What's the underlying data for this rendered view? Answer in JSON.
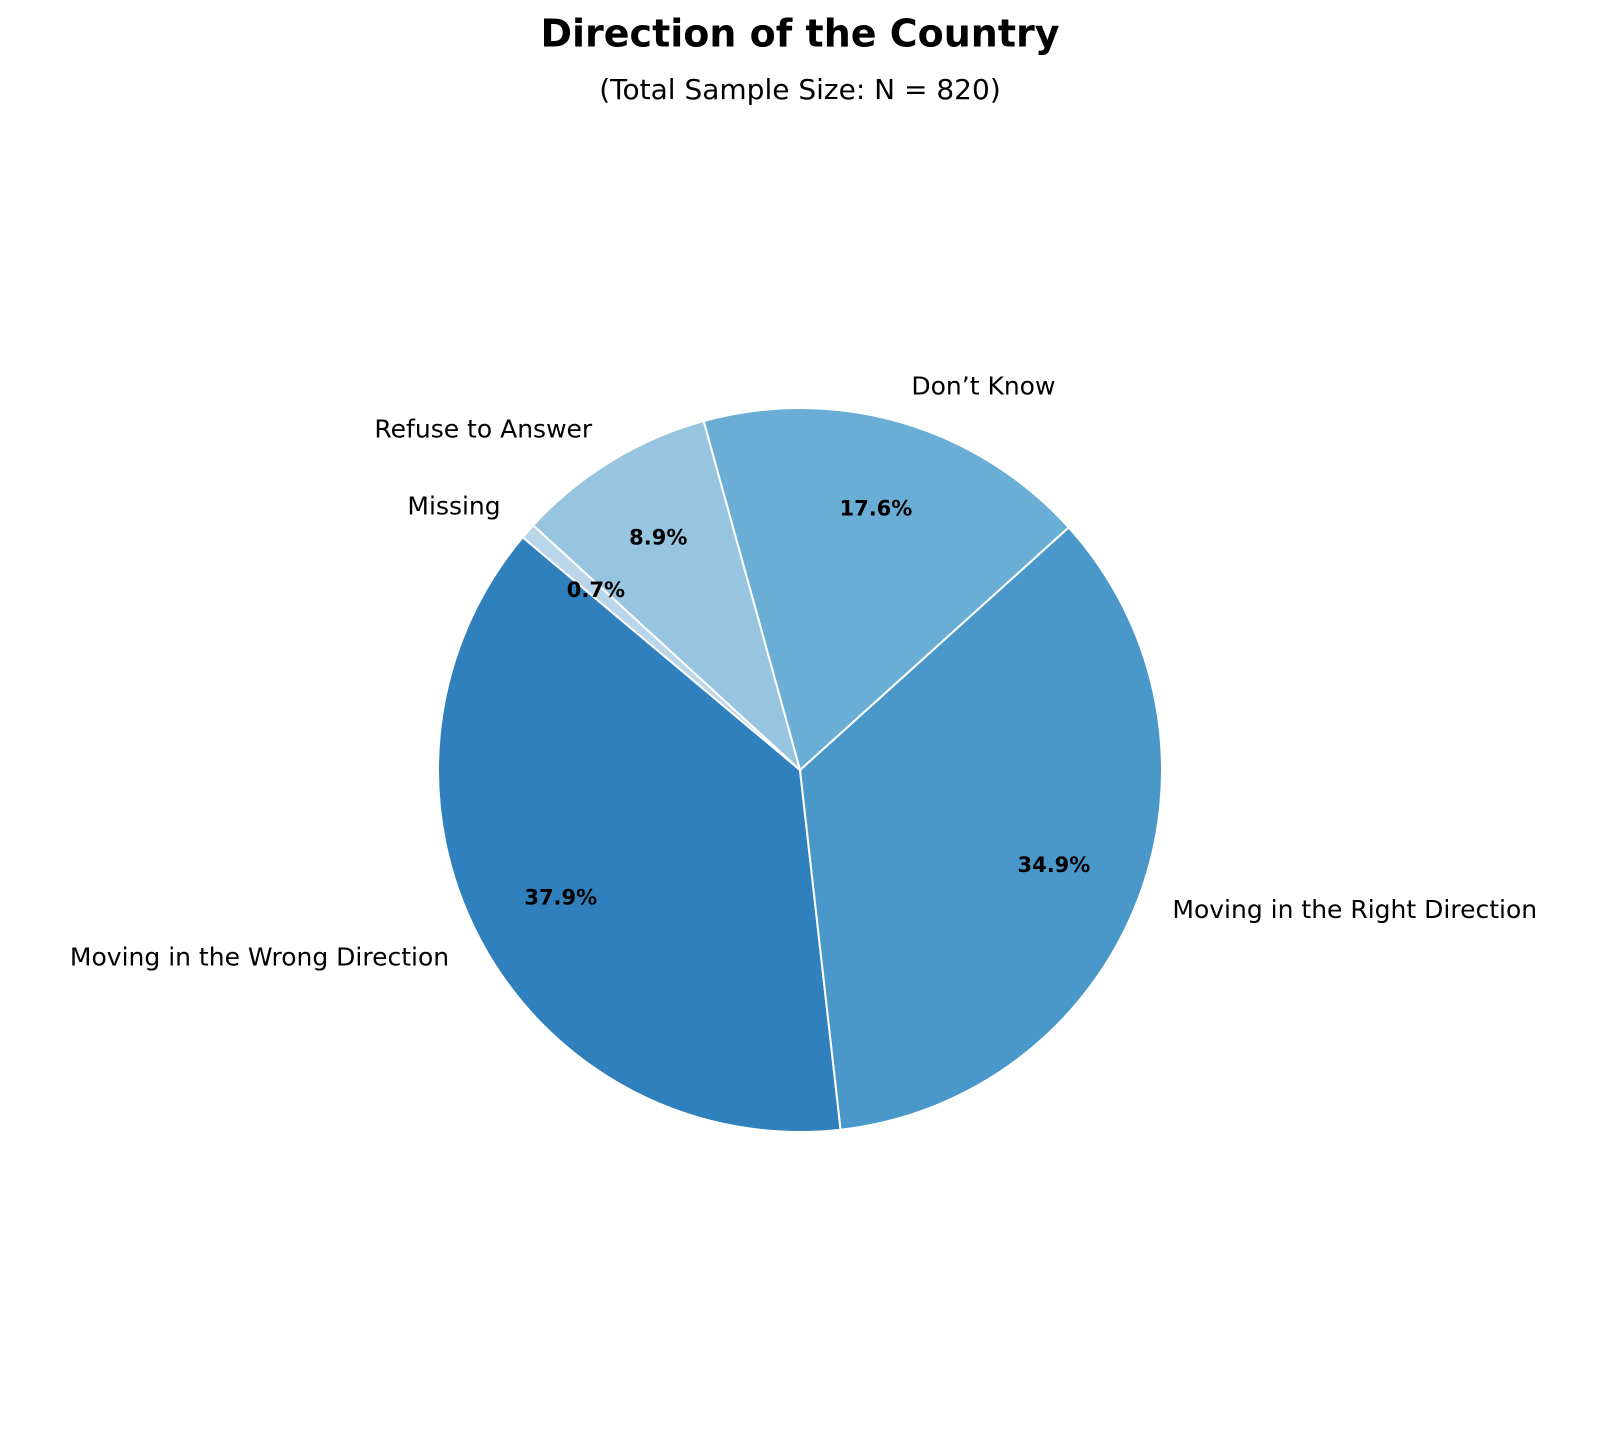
{
  "chart_data": {
    "type": "pie",
    "title": "Direction of the Country",
    "subtitle": "(Total Sample Size: N = 820)",
    "categories": [
      "Moving in the Wrong Direction",
      "Moving in the Right Direction",
      "Don’t Know",
      "Refuse to Answer",
      "Missing"
    ],
    "values": [
      37.9,
      34.9,
      17.6,
      8.9,
      0.7
    ],
    "value_labels": [
      "37.9%",
      "34.9%",
      "17.6%",
      "8.9%",
      "0.7%"
    ],
    "colors": [
      "#3080bd",
      "#4a98c9",
      "#6aaed6",
      "#97c4df",
      "#bad6eb"
    ],
    "start_angle": 140
  }
}
